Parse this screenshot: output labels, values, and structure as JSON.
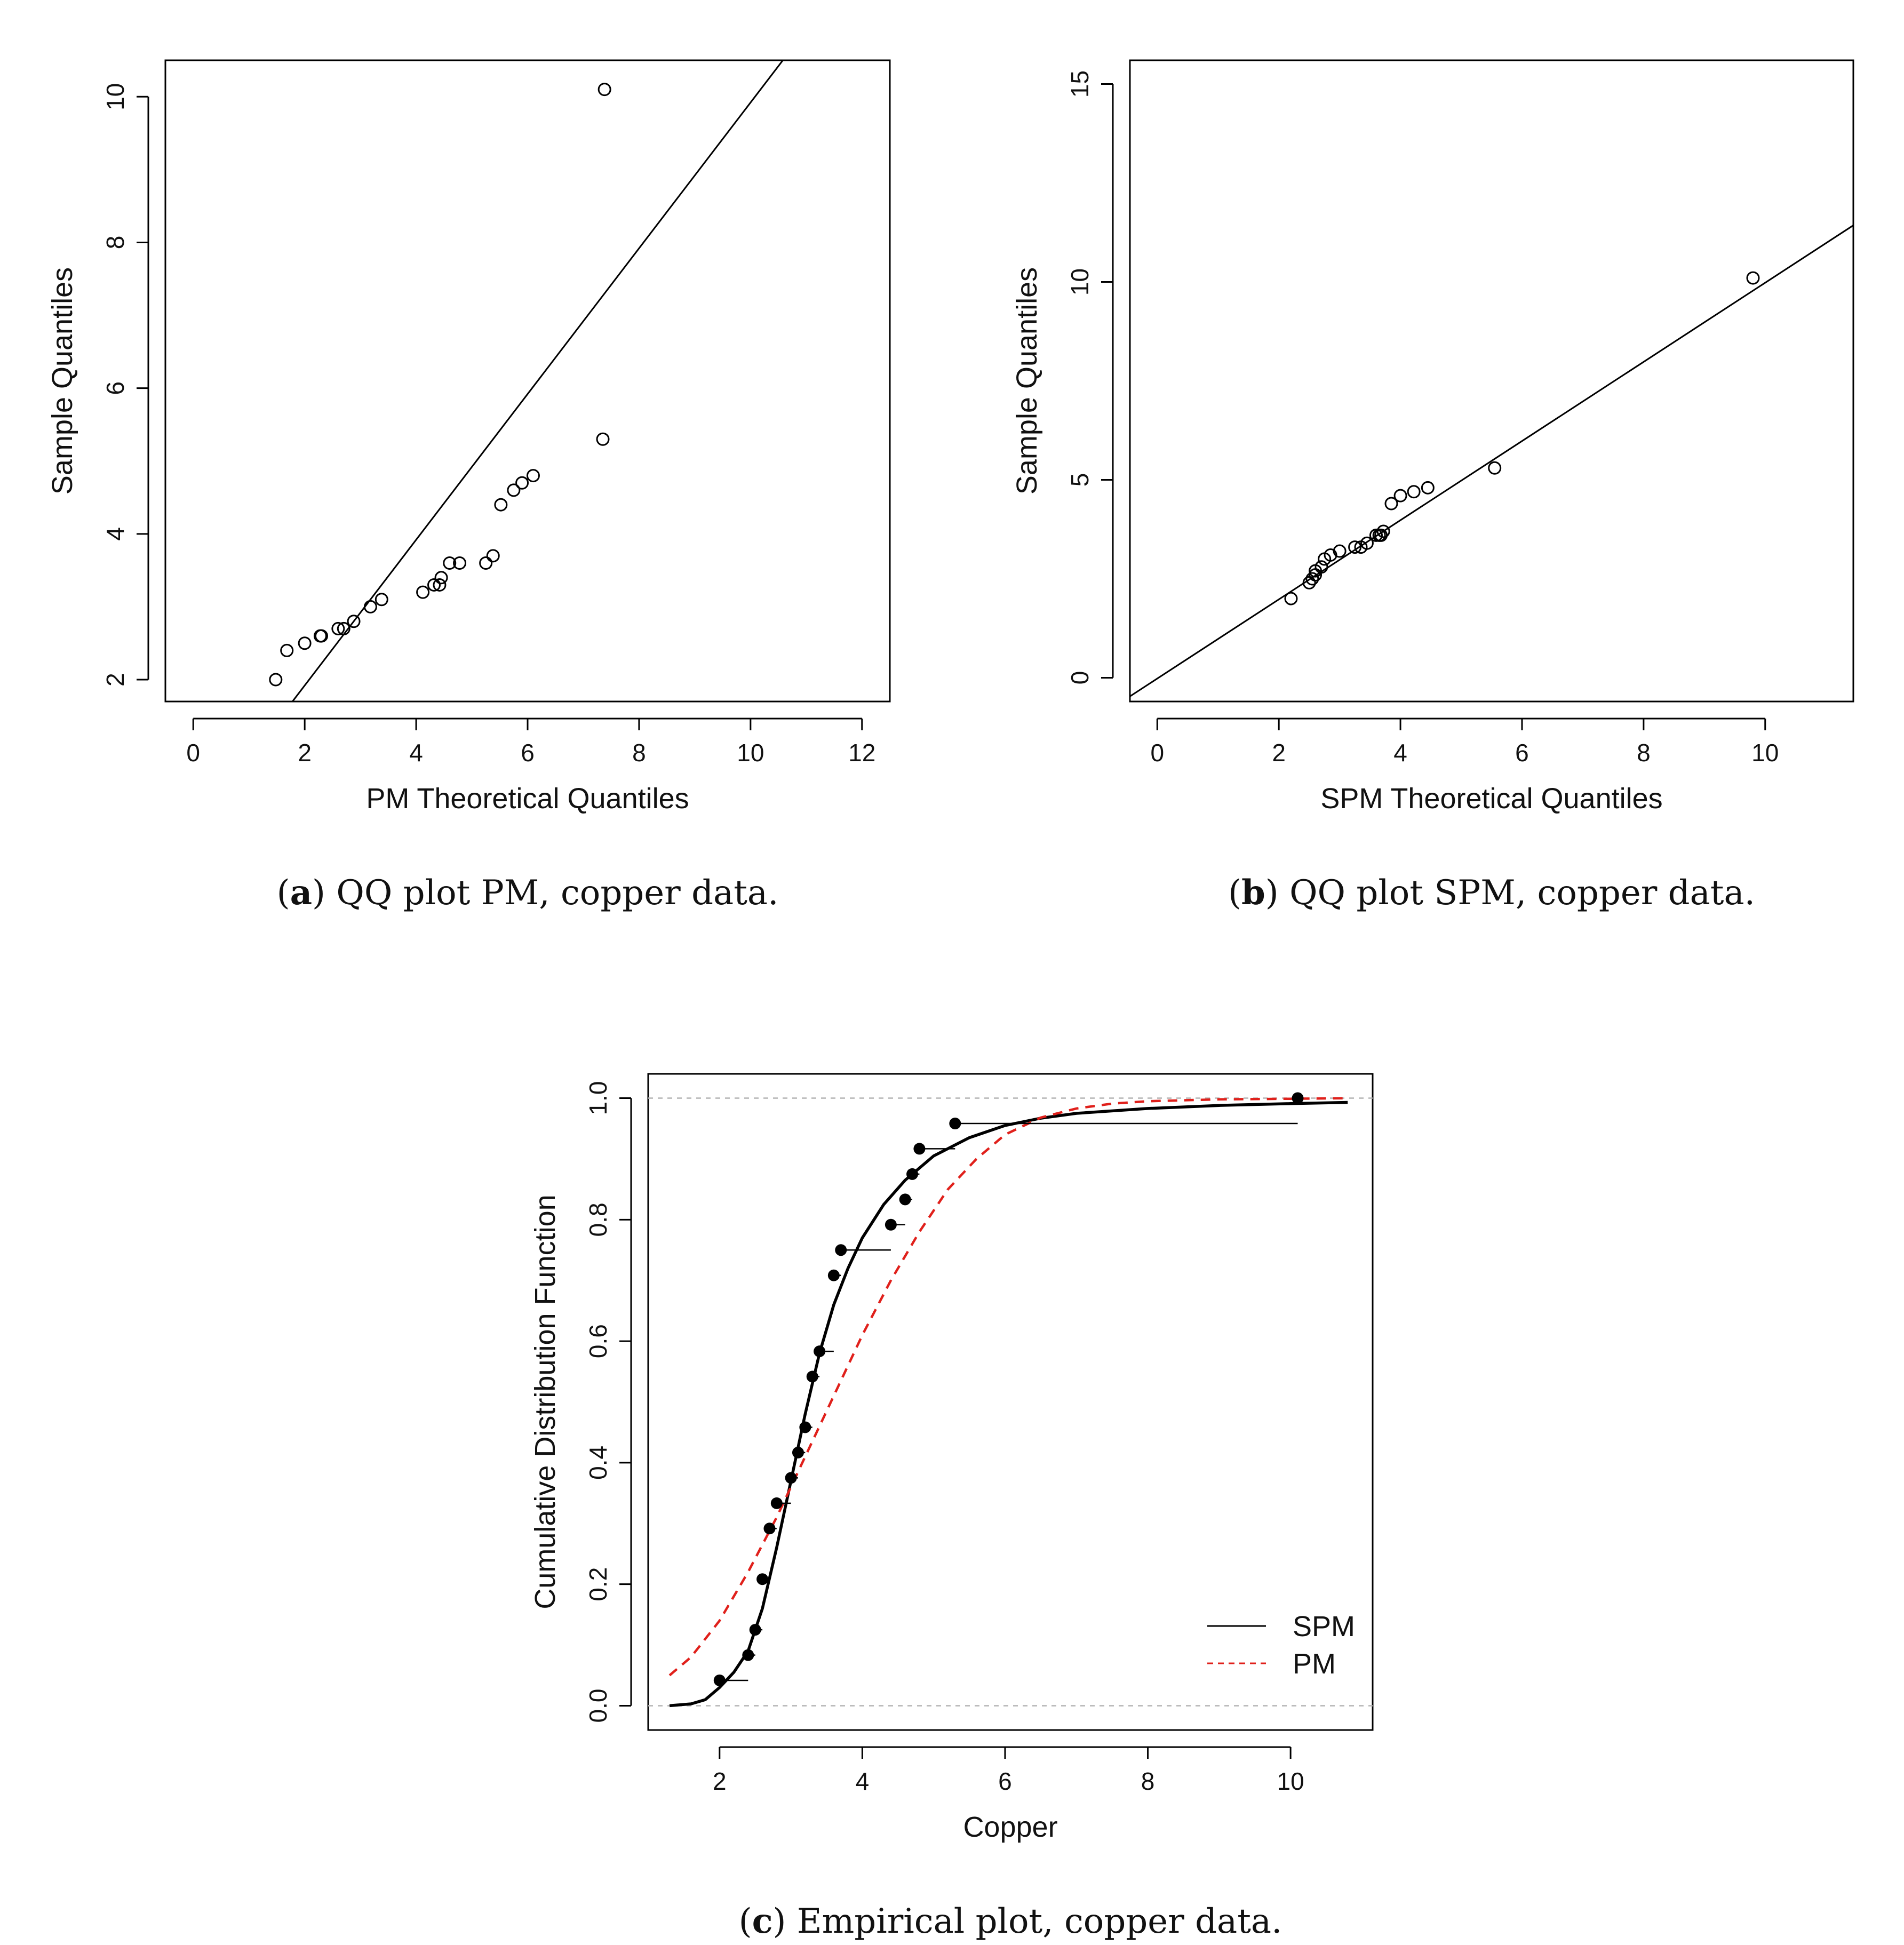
{
  "chart_data": [
    {
      "type": "scatter",
      "panel": "a",
      "title": "",
      "xlabel": "PM Theoretical Quantiles",
      "ylabel": "Sample Quantiles",
      "xlim": [
        -0.5,
        12.5
      ],
      "ylim": [
        1.7,
        10.5
      ],
      "xticks": [
        0,
        2,
        4,
        6,
        8,
        10,
        12
      ],
      "yticks": [
        2,
        4,
        6,
        8,
        10
      ],
      "points": [
        {
          "x": 1.48,
          "y": 2.0
        },
        {
          "x": 1.68,
          "y": 2.4
        },
        {
          "x": 2.0,
          "y": 2.5
        },
        {
          "x": 2.28,
          "y": 2.6
        },
        {
          "x": 2.3,
          "y": 2.6
        },
        {
          "x": 2.6,
          "y": 2.7
        },
        {
          "x": 2.7,
          "y": 2.7
        },
        {
          "x": 2.88,
          "y": 2.8
        },
        {
          "x": 3.18,
          "y": 3.0
        },
        {
          "x": 3.38,
          "y": 3.1
        },
        {
          "x": 4.12,
          "y": 3.2
        },
        {
          "x": 4.32,
          "y": 3.3
        },
        {
          "x": 4.42,
          "y": 3.3
        },
        {
          "x": 4.45,
          "y": 3.4
        },
        {
          "x": 4.6,
          "y": 3.6
        },
        {
          "x": 4.78,
          "y": 3.6
        },
        {
          "x": 5.25,
          "y": 3.6
        },
        {
          "x": 5.38,
          "y": 3.7
        },
        {
          "x": 5.52,
          "y": 4.4
        },
        {
          "x": 5.75,
          "y": 4.6
        },
        {
          "x": 5.9,
          "y": 4.7
        },
        {
          "x": 6.1,
          "y": 4.8
        },
        {
          "x": 7.35,
          "y": 5.3
        },
        {
          "x": 7.38,
          "y": 10.1
        }
      ],
      "reference_line": {
        "intercept": -0.08,
        "slope": 1.0
      }
    },
    {
      "type": "scatter",
      "panel": "b",
      "title": "",
      "xlabel": "SPM Theoretical Quantiles",
      "ylabel": "Sample Quantiles",
      "xlim": [
        -0.45,
        11.45
      ],
      "ylim": [
        -0.6,
        15.6
      ],
      "xticks": [
        0,
        2,
        4,
        6,
        8,
        10
      ],
      "yticks": [
        0,
        5,
        10,
        15
      ],
      "points": [
        {
          "x": 2.2,
          "y": 2.0
        },
        {
          "x": 2.5,
          "y": 2.4
        },
        {
          "x": 2.55,
          "y": 2.5
        },
        {
          "x": 2.6,
          "y": 2.6
        },
        {
          "x": 2.6,
          "y": 2.7
        },
        {
          "x": 2.7,
          "y": 2.8
        },
        {
          "x": 2.75,
          "y": 3.0
        },
        {
          "x": 2.85,
          "y": 3.1
        },
        {
          "x": 3.0,
          "y": 3.2
        },
        {
          "x": 3.25,
          "y": 3.3
        },
        {
          "x": 3.35,
          "y": 3.3
        },
        {
          "x": 3.45,
          "y": 3.4
        },
        {
          "x": 3.6,
          "y": 3.6
        },
        {
          "x": 3.65,
          "y": 3.6
        },
        {
          "x": 3.68,
          "y": 3.6
        },
        {
          "x": 3.72,
          "y": 3.7
        },
        {
          "x": 3.85,
          "y": 4.4
        },
        {
          "x": 4.0,
          "y": 4.6
        },
        {
          "x": 4.22,
          "y": 4.7
        },
        {
          "x": 4.45,
          "y": 4.8
        },
        {
          "x": 5.55,
          "y": 5.3
        },
        {
          "x": 9.8,
          "y": 10.1
        }
      ],
      "reference_line": {
        "intercept": -0.02,
        "slope": 1.0
      }
    },
    {
      "type": "line",
      "panel": "c",
      "title": "",
      "xlabel": "Copper",
      "ylabel": "Cumulative Distribution Function",
      "xlim": [
        1.0,
        11.15
      ],
      "ylim": [
        -0.04,
        1.04
      ],
      "xticks": [
        2,
        4,
        6,
        8,
        10
      ],
      "yticks": [
        0.0,
        0.2,
        0.4,
        0.6,
        0.8,
        1.0
      ],
      "ytick_labels": [
        "0.0",
        "0.2",
        "0.4",
        "0.6",
        "0.8",
        "1.0"
      ],
      "reference_hlines": [
        0,
        1
      ],
      "ecdf": [
        {
          "x": 2.0,
          "y": 0.0417,
          "x_end": 2.4
        },
        {
          "x": 2.4,
          "y": 0.0833,
          "x_end": 2.5
        },
        {
          "x": 2.5,
          "y": 0.125,
          "x_end": 2.6
        },
        {
          "x": 2.6,
          "y": 0.2083,
          "x_end": 2.7
        },
        {
          "x": 2.7,
          "y": 0.2917,
          "x_end": 2.8
        },
        {
          "x": 2.8,
          "y": 0.3333,
          "x_end": 3.0
        },
        {
          "x": 3.0,
          "y": 0.375,
          "x_end": 3.1
        },
        {
          "x": 3.1,
          "y": 0.4167,
          "x_end": 3.2
        },
        {
          "x": 3.2,
          "y": 0.4583,
          "x_end": 3.3
        },
        {
          "x": 3.3,
          "y": 0.5417,
          "x_end": 3.4
        },
        {
          "x": 3.4,
          "y": 0.5833,
          "x_end": 3.6
        },
        {
          "x": 3.6,
          "y": 0.7083,
          "x_end": 3.7
        },
        {
          "x": 3.7,
          "y": 0.75,
          "x_end": 4.4
        },
        {
          "x": 4.4,
          "y": 0.7917,
          "x_end": 4.6
        },
        {
          "x": 4.6,
          "y": 0.8333,
          "x_end": 4.7
        },
        {
          "x": 4.7,
          "y": 0.875,
          "x_end": 4.8
        },
        {
          "x": 4.8,
          "y": 0.9167,
          "x_end": 5.3
        },
        {
          "x": 5.3,
          "y": 0.9583,
          "x_end": 10.1
        },
        {
          "x": 10.1,
          "y": 1.0,
          "x_end": 10.1
        }
      ],
      "series": [
        {
          "name": "SPM",
          "color": "#000000",
          "dash": "solid",
          "x": [
            1.3,
            1.6,
            1.8,
            2.0,
            2.2,
            2.4,
            2.6,
            2.8,
            3.0,
            3.2,
            3.4,
            3.6,
            3.8,
            4.0,
            4.3,
            4.6,
            5.0,
            5.5,
            6.0,
            6.5,
            7.0,
            8.0,
            9.0,
            10.0,
            10.8
          ],
          "y": [
            0.0,
            0.003,
            0.01,
            0.03,
            0.055,
            0.09,
            0.16,
            0.26,
            0.37,
            0.48,
            0.58,
            0.66,
            0.72,
            0.77,
            0.825,
            0.865,
            0.905,
            0.935,
            0.955,
            0.967,
            0.975,
            0.983,
            0.988,
            0.991,
            0.993
          ]
        },
        {
          "name": "PM",
          "color": "#e0201b",
          "dash": "dashed",
          "x": [
            1.3,
            1.6,
            2.0,
            2.4,
            2.8,
            3.2,
            3.6,
            4.0,
            4.4,
            4.8,
            5.2,
            5.6,
            6.0,
            6.5,
            7.0,
            7.5,
            8.0,
            9.0,
            10.0,
            10.8
          ],
          "y": [
            0.05,
            0.08,
            0.14,
            0.22,
            0.31,
            0.41,
            0.51,
            0.61,
            0.7,
            0.78,
            0.85,
            0.9,
            0.94,
            0.968,
            0.983,
            0.991,
            0.995,
            0.998,
            0.999,
            1.0
          ]
        }
      ],
      "legend": {
        "position": "bottom-right",
        "entries": [
          "SPM",
          "PM"
        ]
      }
    }
  ],
  "captions": {
    "a": {
      "letter": "a",
      "text": "QQ plot PM, copper data."
    },
    "b": {
      "letter": "b",
      "text": "QQ plot SPM, copper data."
    },
    "c": {
      "letter": "c",
      "text": "Empirical plot, copper data."
    }
  }
}
